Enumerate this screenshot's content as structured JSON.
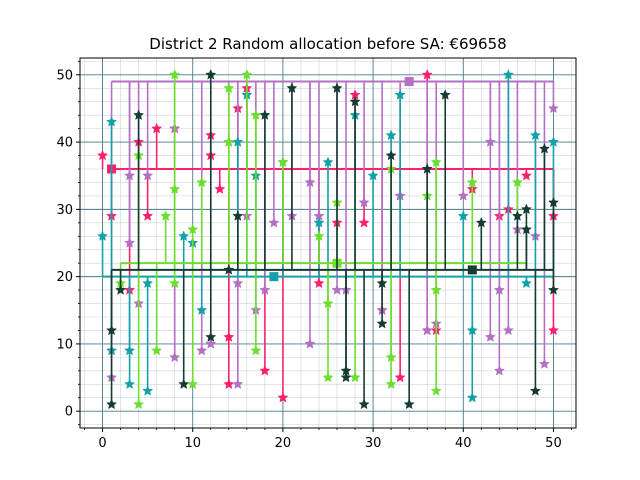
{
  "chart_data": {
    "type": "scatter",
    "title": "District 2 Random allocation before SA: €69658",
    "xlabel": "",
    "ylabel": "",
    "xlim": [
      -2.5,
      52.5
    ],
    "ylim": [
      -2.5,
      52.5
    ],
    "x_ticks": [
      0,
      10,
      20,
      30,
      40,
      50
    ],
    "y_ticks": [
      0,
      10,
      20,
      30,
      40,
      50
    ],
    "grid": {
      "major": true,
      "minor": true,
      "major_color": "#4a7a87",
      "minor_color": "#c9d4da"
    },
    "series": [
      {
        "color": "#ff1f6b",
        "hub": [
          1,
          36
        ],
        "trunk_y": 36,
        "trunk_x": [
          1,
          50
        ],
        "points": [
          [
            0,
            38
          ],
          [
            1,
            29
          ],
          [
            3,
            18
          ],
          [
            4,
            40
          ],
          [
            5,
            29
          ],
          [
            6,
            42
          ],
          [
            8,
            42
          ],
          [
            12,
            38
          ],
          [
            12,
            41
          ],
          [
            13,
            33
          ],
          [
            14,
            11
          ],
          [
            14,
            4
          ],
          [
            15,
            45
          ],
          [
            16,
            48
          ],
          [
            18,
            6
          ],
          [
            20,
            2
          ],
          [
            24,
            19
          ],
          [
            26,
            28
          ],
          [
            28,
            47
          ],
          [
            29,
            28
          ],
          [
            31,
            15
          ],
          [
            33,
            32
          ],
          [
            33,
            5
          ],
          [
            36,
            50
          ],
          [
            36,
            12
          ],
          [
            37,
            12
          ],
          [
            41,
            33
          ],
          [
            44,
            29
          ],
          [
            45,
            30
          ],
          [
            47,
            35
          ],
          [
            50,
            29
          ],
          [
            50,
            12
          ]
        ]
      },
      {
        "color": "#b370c4",
        "hub": [
          34,
          49
        ],
        "trunk_y": 49,
        "trunk_x": [
          1,
          50
        ],
        "points": [
          [
            1,
            5
          ],
          [
            3,
            25
          ],
          [
            3,
            35
          ],
          [
            4,
            16
          ],
          [
            5,
            35
          ],
          [
            8,
            42
          ],
          [
            8,
            8
          ],
          [
            11,
            9
          ],
          [
            12,
            10
          ],
          [
            14,
            40
          ],
          [
            15,
            4
          ],
          [
            15,
            19
          ],
          [
            16,
            29
          ],
          [
            17,
            15
          ],
          [
            18,
            18
          ],
          [
            19,
            28
          ],
          [
            21,
            29
          ],
          [
            23,
            34
          ],
          [
            23,
            10
          ],
          [
            24,
            29
          ],
          [
            26,
            18
          ],
          [
            27,
            18
          ],
          [
            29,
            31
          ],
          [
            31,
            15
          ],
          [
            33,
            32
          ],
          [
            36,
            12
          ],
          [
            37,
            13
          ],
          [
            40,
            32
          ],
          [
            43,
            11
          ],
          [
            43,
            40
          ],
          [
            44,
            18
          ],
          [
            44,
            6
          ],
          [
            45,
            12
          ],
          [
            46,
            27
          ],
          [
            48,
            26
          ],
          [
            49,
            7
          ],
          [
            50,
            45
          ]
        ]
      },
      {
        "color": "#13a0a8",
        "hub": [
          19,
          20
        ],
        "trunk_y": 20,
        "trunk_x": [
          0,
          50
        ],
        "points": [
          [
            0,
            26
          ],
          [
            1,
            43
          ],
          [
            1,
            9
          ],
          [
            3,
            9
          ],
          [
            3,
            4
          ],
          [
            5,
            19
          ],
          [
            5,
            3
          ],
          [
            9,
            26
          ],
          [
            10,
            25
          ],
          [
            11,
            15
          ],
          [
            15,
            40
          ],
          [
            16,
            47
          ],
          [
            17,
            35
          ],
          [
            20,
            37
          ],
          [
            24,
            28
          ],
          [
            25,
            37
          ],
          [
            28,
            44
          ],
          [
            30,
            35
          ],
          [
            32,
            41
          ],
          [
            33,
            47
          ],
          [
            40,
            29
          ],
          [
            41,
            12
          ],
          [
            41,
            2
          ],
          [
            45,
            50
          ],
          [
            47,
            19
          ],
          [
            48,
            41
          ],
          [
            50,
            40
          ]
        ]
      },
      {
        "color": "#6cde2e",
        "hub": [
          26,
          22
        ],
        "trunk_y": 22,
        "trunk_x": [
          2,
          47
        ],
        "points": [
          [
            2,
            19
          ],
          [
            4,
            38
          ],
          [
            4,
            1
          ],
          [
            6,
            9
          ],
          [
            7,
            29
          ],
          [
            8,
            50
          ],
          [
            8,
            33
          ],
          [
            8,
            19
          ],
          [
            10,
            27
          ],
          [
            10,
            4
          ],
          [
            11,
            34
          ],
          [
            14,
            48
          ],
          [
            14,
            40
          ],
          [
            16,
            50
          ],
          [
            17,
            44
          ],
          [
            17,
            9
          ],
          [
            20,
            37
          ],
          [
            24,
            26
          ],
          [
            25,
            16
          ],
          [
            25,
            5
          ],
          [
            26,
            31
          ],
          [
            28,
            5
          ],
          [
            32,
            36
          ],
          [
            32,
            8
          ],
          [
            32,
            4
          ],
          [
            36,
            32
          ],
          [
            37,
            37
          ],
          [
            37,
            18
          ],
          [
            37,
            3
          ],
          [
            41,
            34
          ],
          [
            46,
            34
          ]
        ]
      },
      {
        "color": "#163b33",
        "hub": [
          41,
          21
        ],
        "trunk_y": 21,
        "trunk_x": [
          1,
          50
        ],
        "points": [
          [
            1,
            12
          ],
          [
            1,
            1
          ],
          [
            2,
            18
          ],
          [
            4,
            44
          ],
          [
            9,
            4
          ],
          [
            12,
            50
          ],
          [
            12,
            11
          ],
          [
            14,
            21
          ],
          [
            15,
            29
          ],
          [
            18,
            44
          ],
          [
            21,
            48
          ],
          [
            26,
            48
          ],
          [
            27,
            6
          ],
          [
            27,
            5
          ],
          [
            28,
            46
          ],
          [
            29,
            1
          ],
          [
            31,
            19
          ],
          [
            31,
            13
          ],
          [
            32,
            38
          ],
          [
            34,
            1
          ],
          [
            36,
            36
          ],
          [
            38,
            47
          ],
          [
            42,
            28
          ],
          [
            46,
            29
          ],
          [
            47,
            30
          ],
          [
            47,
            27
          ],
          [
            48,
            3
          ],
          [
            49,
            39
          ],
          [
            50,
            31
          ],
          [
            50,
            18
          ]
        ]
      }
    ]
  }
}
